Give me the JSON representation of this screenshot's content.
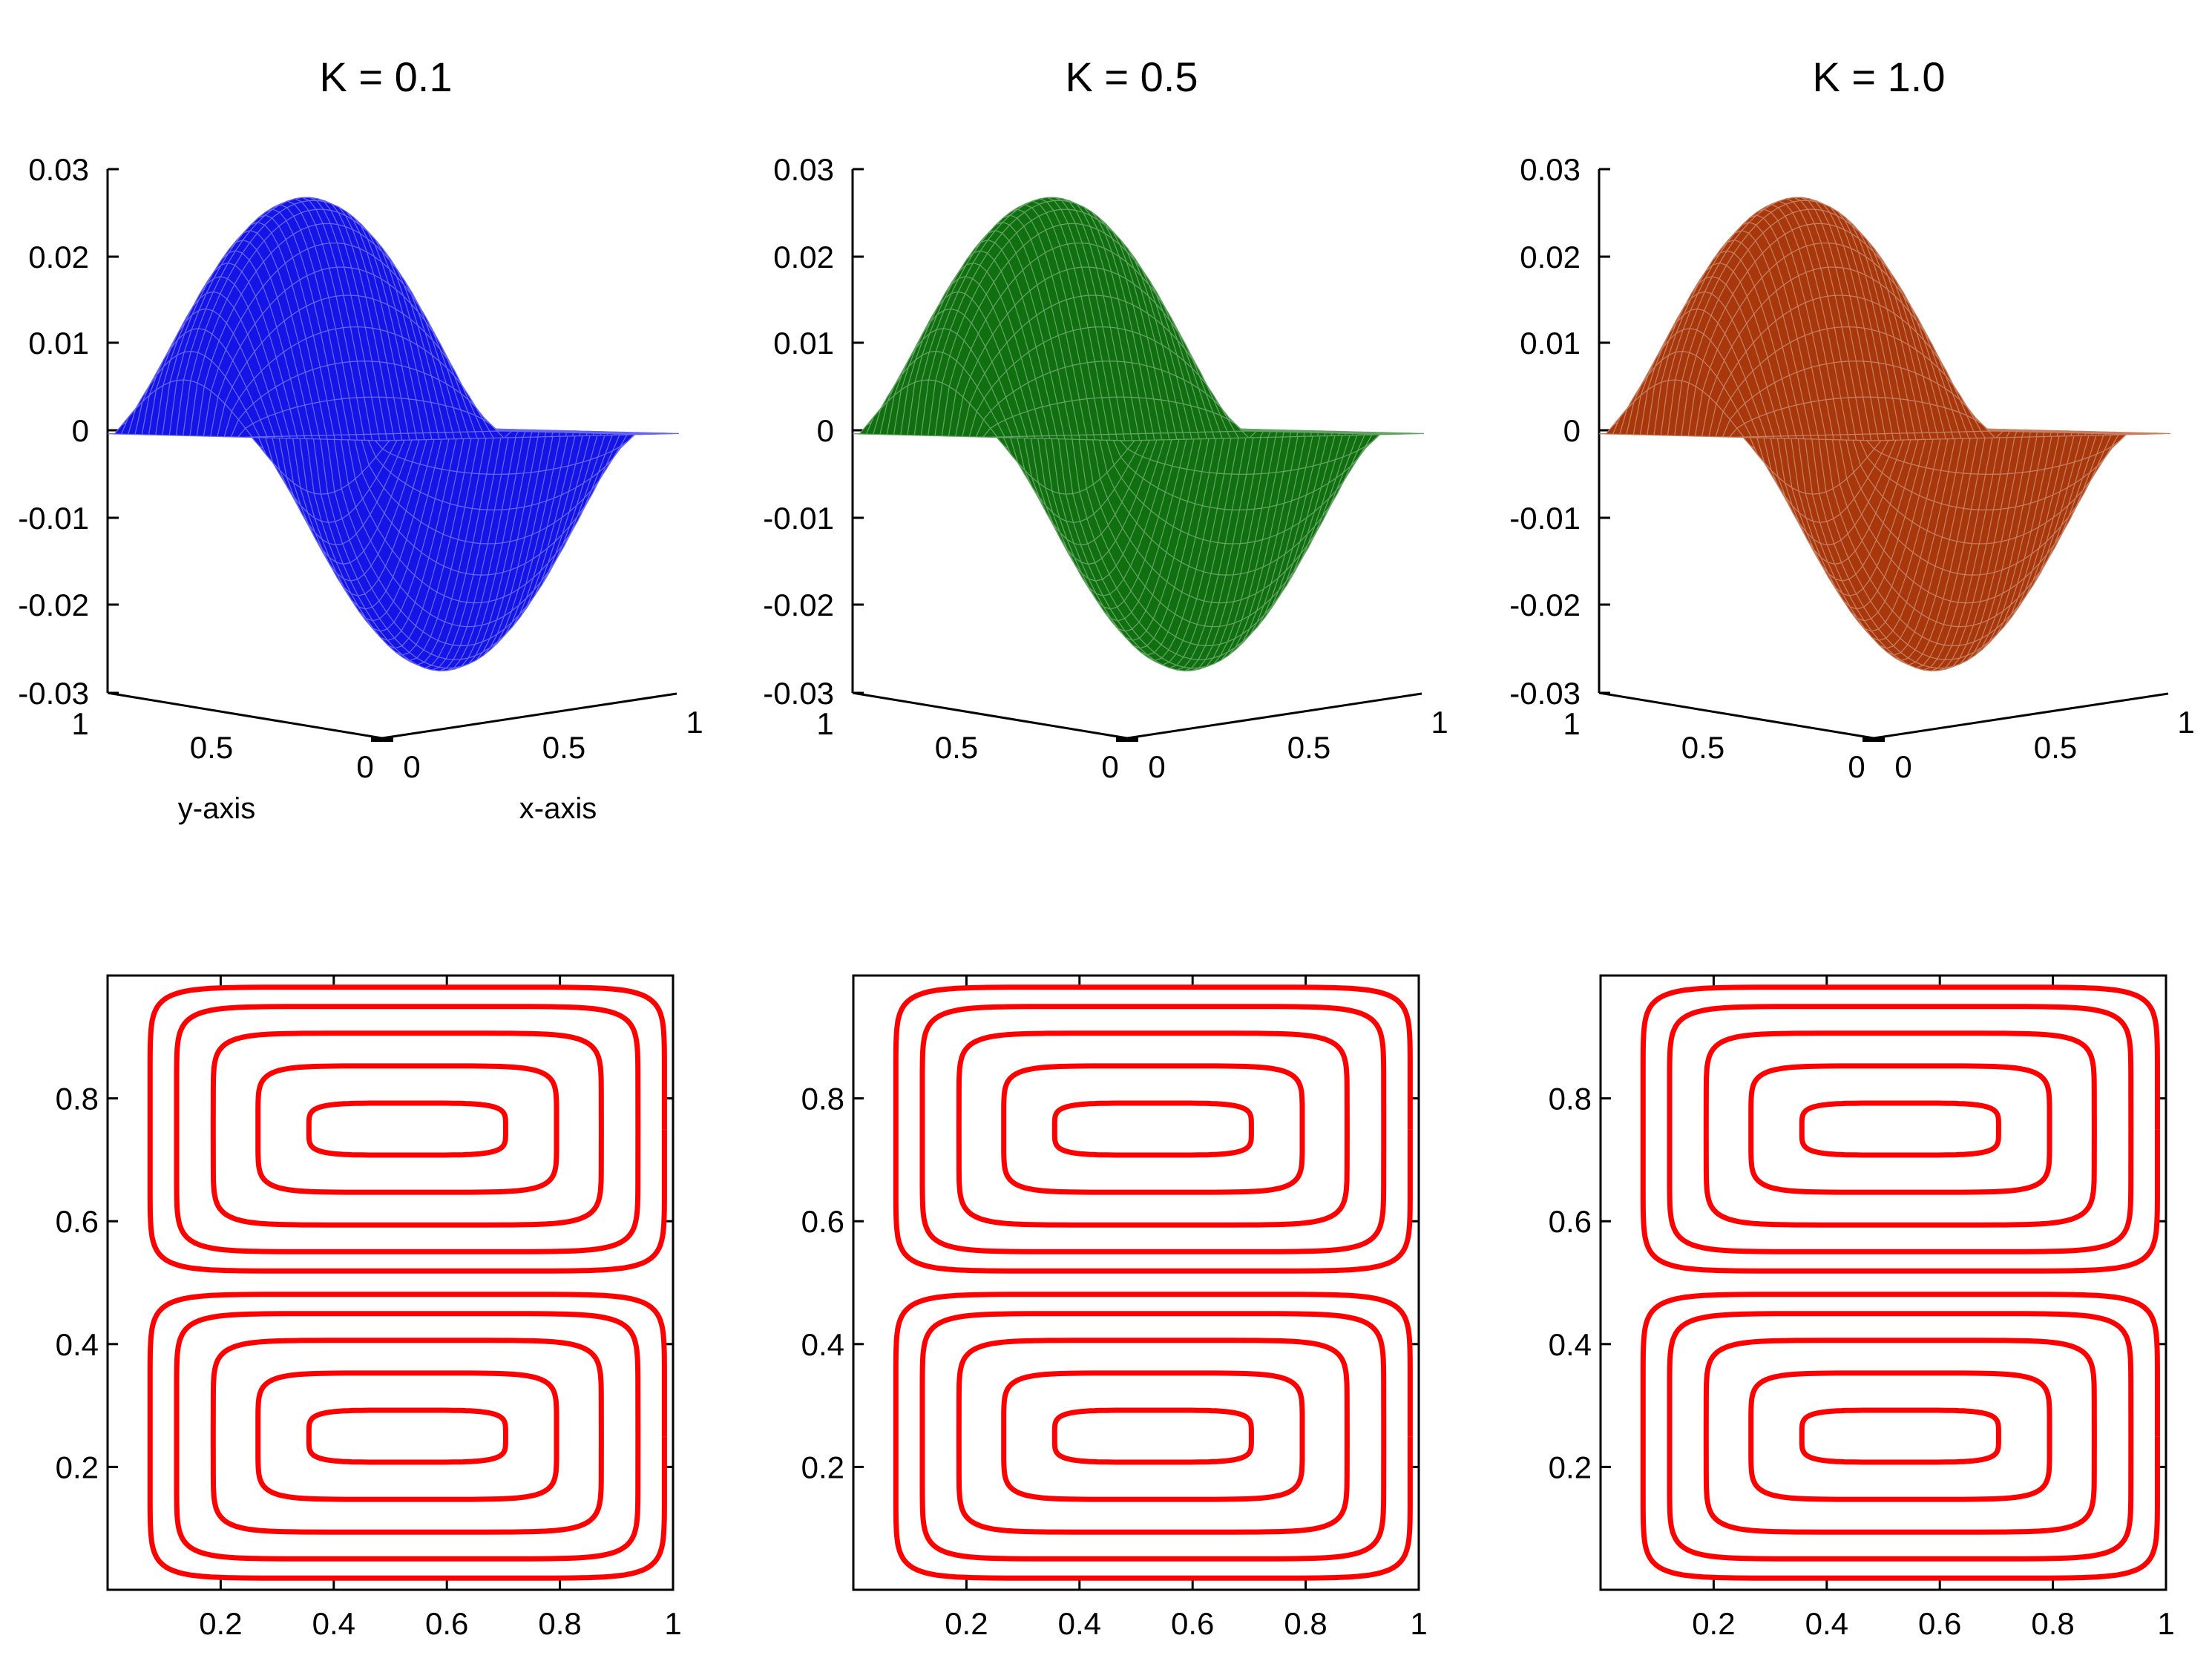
{
  "chart_data": [
    {
      "type": "surface",
      "title": "K = 0.1",
      "color": "#1414e6",
      "xlabel": "x-axis",
      "ylabel": "y-axis",
      "zlim": [
        -0.03,
        0.03
      ],
      "z_ticks": [
        "0.03",
        "0.02",
        "0.01",
        "0",
        "-0.01",
        "-0.02",
        "-0.03"
      ],
      "x_ticks": [
        "0",
        "0.5",
        "1"
      ],
      "y_ticks": [
        "1",
        "0.5",
        "0"
      ],
      "amplitude": 0.027,
      "grid": false
    },
    {
      "type": "surface",
      "title": "K = 0.5",
      "color": "#107010",
      "xlabel": "",
      "ylabel": "",
      "zlim": [
        -0.03,
        0.03
      ],
      "z_ticks": [
        "0.03",
        "0.02",
        "0.01",
        "0",
        "-0.01",
        "-0.02",
        "-0.03"
      ],
      "x_ticks": [
        "0",
        "0.5",
        "1"
      ],
      "y_ticks": [
        "1",
        "0.5",
        "0"
      ],
      "amplitude": 0.027,
      "grid": false
    },
    {
      "type": "surface",
      "title": "K = 1.0",
      "color": "#a8380c",
      "xlabel": "",
      "ylabel": "",
      "zlim": [
        -0.03,
        0.03
      ],
      "z_ticks": [
        "0.03",
        "0.02",
        "0.01",
        "0",
        "-0.01",
        "-0.02",
        "-0.03"
      ],
      "x_ticks": [
        "0",
        "0.5",
        "1"
      ],
      "y_ticks": [
        "1",
        "0.5",
        "0"
      ],
      "amplitude": 0.027,
      "grid": false
    },
    {
      "type": "contour",
      "title": "",
      "color": "#ff0000",
      "xlim": [
        0,
        1
      ],
      "ylim": [
        0,
        1
      ],
      "x_ticks": [
        "0.2",
        "0.4",
        "0.6",
        "0.8",
        "1"
      ],
      "y_ticks": [
        "0.2",
        "0.4",
        "0.6",
        "0.8"
      ],
      "levels": [
        0.93,
        0.8,
        0.62,
        0.4,
        0.15
      ],
      "grid": false
    },
    {
      "type": "contour",
      "title": "",
      "color": "#ff0000",
      "xlim": [
        0,
        1
      ],
      "ylim": [
        0,
        1
      ],
      "x_ticks": [
        "0.2",
        "0.4",
        "0.6",
        "0.8",
        "1"
      ],
      "y_ticks": [
        "0.2",
        "0.4",
        "0.6",
        "0.8"
      ],
      "levels": [
        0.93,
        0.8,
        0.62,
        0.4,
        0.15
      ],
      "grid": false
    },
    {
      "type": "contour",
      "title": "",
      "color": "#ff0000",
      "xlim": [
        0,
        1
      ],
      "ylim": [
        0,
        1
      ],
      "x_ticks": [
        "0.2",
        "0.4",
        "0.6",
        "0.8",
        "1"
      ],
      "y_ticks": [
        "0.2",
        "0.4",
        "0.6",
        "0.8"
      ],
      "levels": [
        0.93,
        0.8,
        0.62,
        0.4,
        0.15
      ],
      "grid": false
    }
  ]
}
